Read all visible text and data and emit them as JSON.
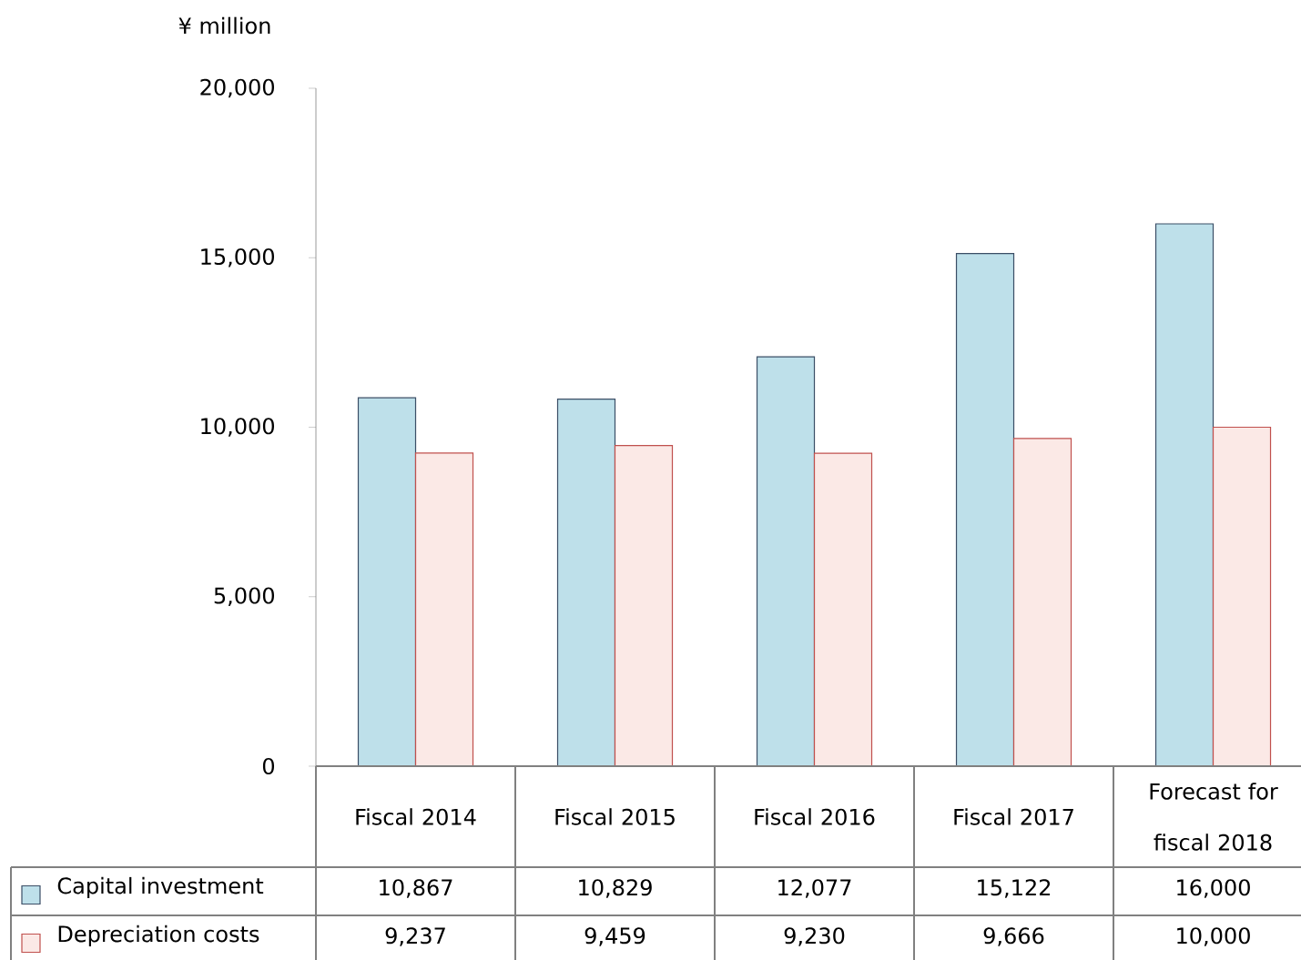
{
  "chart_data": {
    "type": "bar",
    "ylabel": "¥ million",
    "categories": [
      "Fiscal 2014",
      "Fiscal 2015",
      "Fiscal 2016",
      "Fiscal 2017",
      "Forecast for fiscal 2018"
    ],
    "series": [
      {
        "name": "Capital investment",
        "color": "#bee0ea",
        "values": [
          10867,
          10829,
          12077,
          15122,
          16000
        ],
        "value_labels": [
          "10,867",
          "10,829",
          "12,077",
          "15,122",
          "16,000"
        ]
      },
      {
        "name": "Depreciation costs",
        "color": "#fbe9e6",
        "values": [
          9237,
          9459,
          9230,
          9666,
          10000
        ],
        "value_labels": [
          "9,237",
          "9,459",
          "9,230",
          "9,666",
          "10,000"
        ]
      }
    ],
    "ylim": [
      0,
      20000
    ],
    "yticks": [
      {
        "value": 0,
        "label": "0"
      },
      {
        "value": 5000,
        "label": "5,000"
      },
      {
        "value": 10000,
        "label": "10,000"
      },
      {
        "value": 15000,
        "label": "15,000"
      },
      {
        "value": 20000,
        "label": "20,000"
      }
    ],
    "legend": "bottom"
  }
}
